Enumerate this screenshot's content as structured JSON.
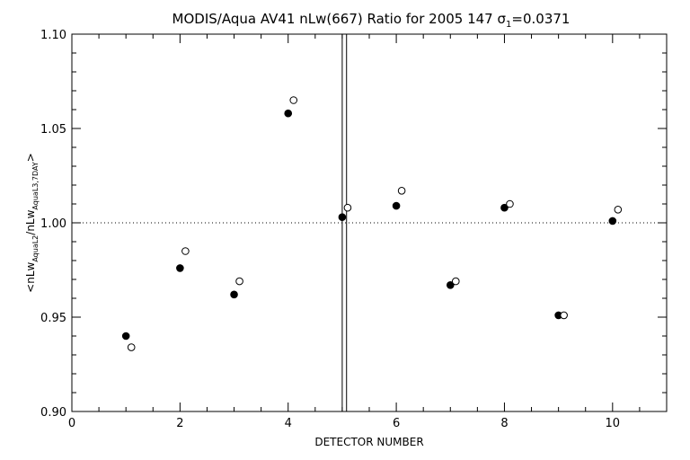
{
  "chart_data": {
    "type": "scatter",
    "title_parts": {
      "main": "MODIS/Aqua AV41 nLw(667) Ratio for 2005 147 ",
      "sigma": "σ",
      "sigma_sub": "1",
      "sigma_value": "=0.0371"
    },
    "xlabel": "DETECTOR NUMBER",
    "ylabel_parts": {
      "open": "<nLw",
      "sub1": "AquaL2",
      "mid": "/nLw",
      "sub2": "AquaL3,7DAY",
      "close": ">"
    },
    "xlim": [
      0,
      11
    ],
    "ylim": [
      0.9,
      1.1
    ],
    "x_ticks": [
      "0",
      "2",
      "4",
      "6",
      "8",
      "10"
    ],
    "x_tick_values": [
      0,
      2,
      4,
      6,
      8,
      10
    ],
    "y_ticks": [
      "0.90",
      "0.95",
      "1.00",
      "1.05",
      "1.10"
    ],
    "y_tick_values": [
      0.9,
      0.95,
      1.0,
      1.05,
      1.1
    ],
    "reference_line_y": 1.0,
    "vertical_lines_x": [
      5.0,
      5.08
    ],
    "series": [
      {
        "marker": "filled-circle",
        "x": [
          1,
          2,
          3,
          4,
          5,
          6,
          7,
          8,
          9,
          10
        ],
        "y": [
          0.94,
          0.976,
          0.962,
          1.058,
          1.003,
          1.009,
          0.967,
          1.008,
          0.951,
          1.001
        ]
      },
      {
        "marker": "open-circle",
        "x": [
          1.1,
          2.1,
          3.1,
          4.1,
          5.1,
          6.1,
          7.1,
          8.1,
          9.1,
          10.1
        ],
        "y": [
          0.934,
          0.985,
          0.969,
          1.065,
          1.008,
          1.017,
          0.969,
          1.01,
          0.951,
          1.007
        ]
      }
    ]
  }
}
